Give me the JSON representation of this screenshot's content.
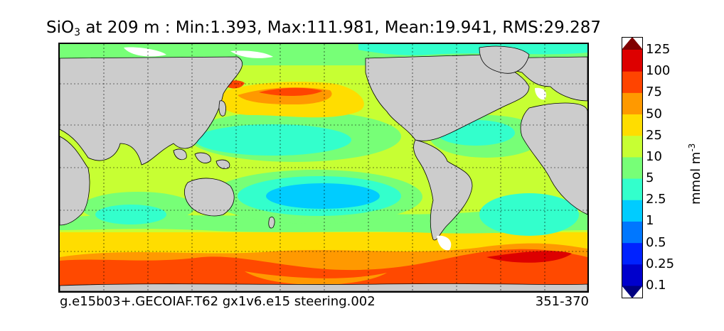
{
  "title": {
    "variable": "SiO",
    "variable_sub": "3",
    "rest": " at 209 m : Min:1.393, Max:111.981, Mean:19.941, RMS:29.287"
  },
  "footer": {
    "case_name": "g.e15b03+.GECOIAF.T62 gx1v6.e15 steering.002",
    "years": "351-370"
  },
  "colorbar": {
    "units": "mmol m",
    "units_exponent": "-3",
    "levels": [
      "0.1",
      "0.25",
      "0.5",
      "1",
      "2.5",
      "5",
      "10",
      "25",
      "50",
      "75",
      "100",
      "125"
    ],
    "colors": [
      "#000080",
      "#0000cc",
      "#0022ff",
      "#0077ff",
      "#00ccff",
      "#33ffcc",
      "#77ff77",
      "#c7ff33",
      "#ffdd00",
      "#ff9900",
      "#ff4400",
      "#dd0000",
      "#800000"
    ],
    "land_color": "#cccccc"
  },
  "map": {
    "field": "SiO3 concentration at 209 m",
    "projection": "global, longitude-latitude",
    "gridlines": true
  }
}
